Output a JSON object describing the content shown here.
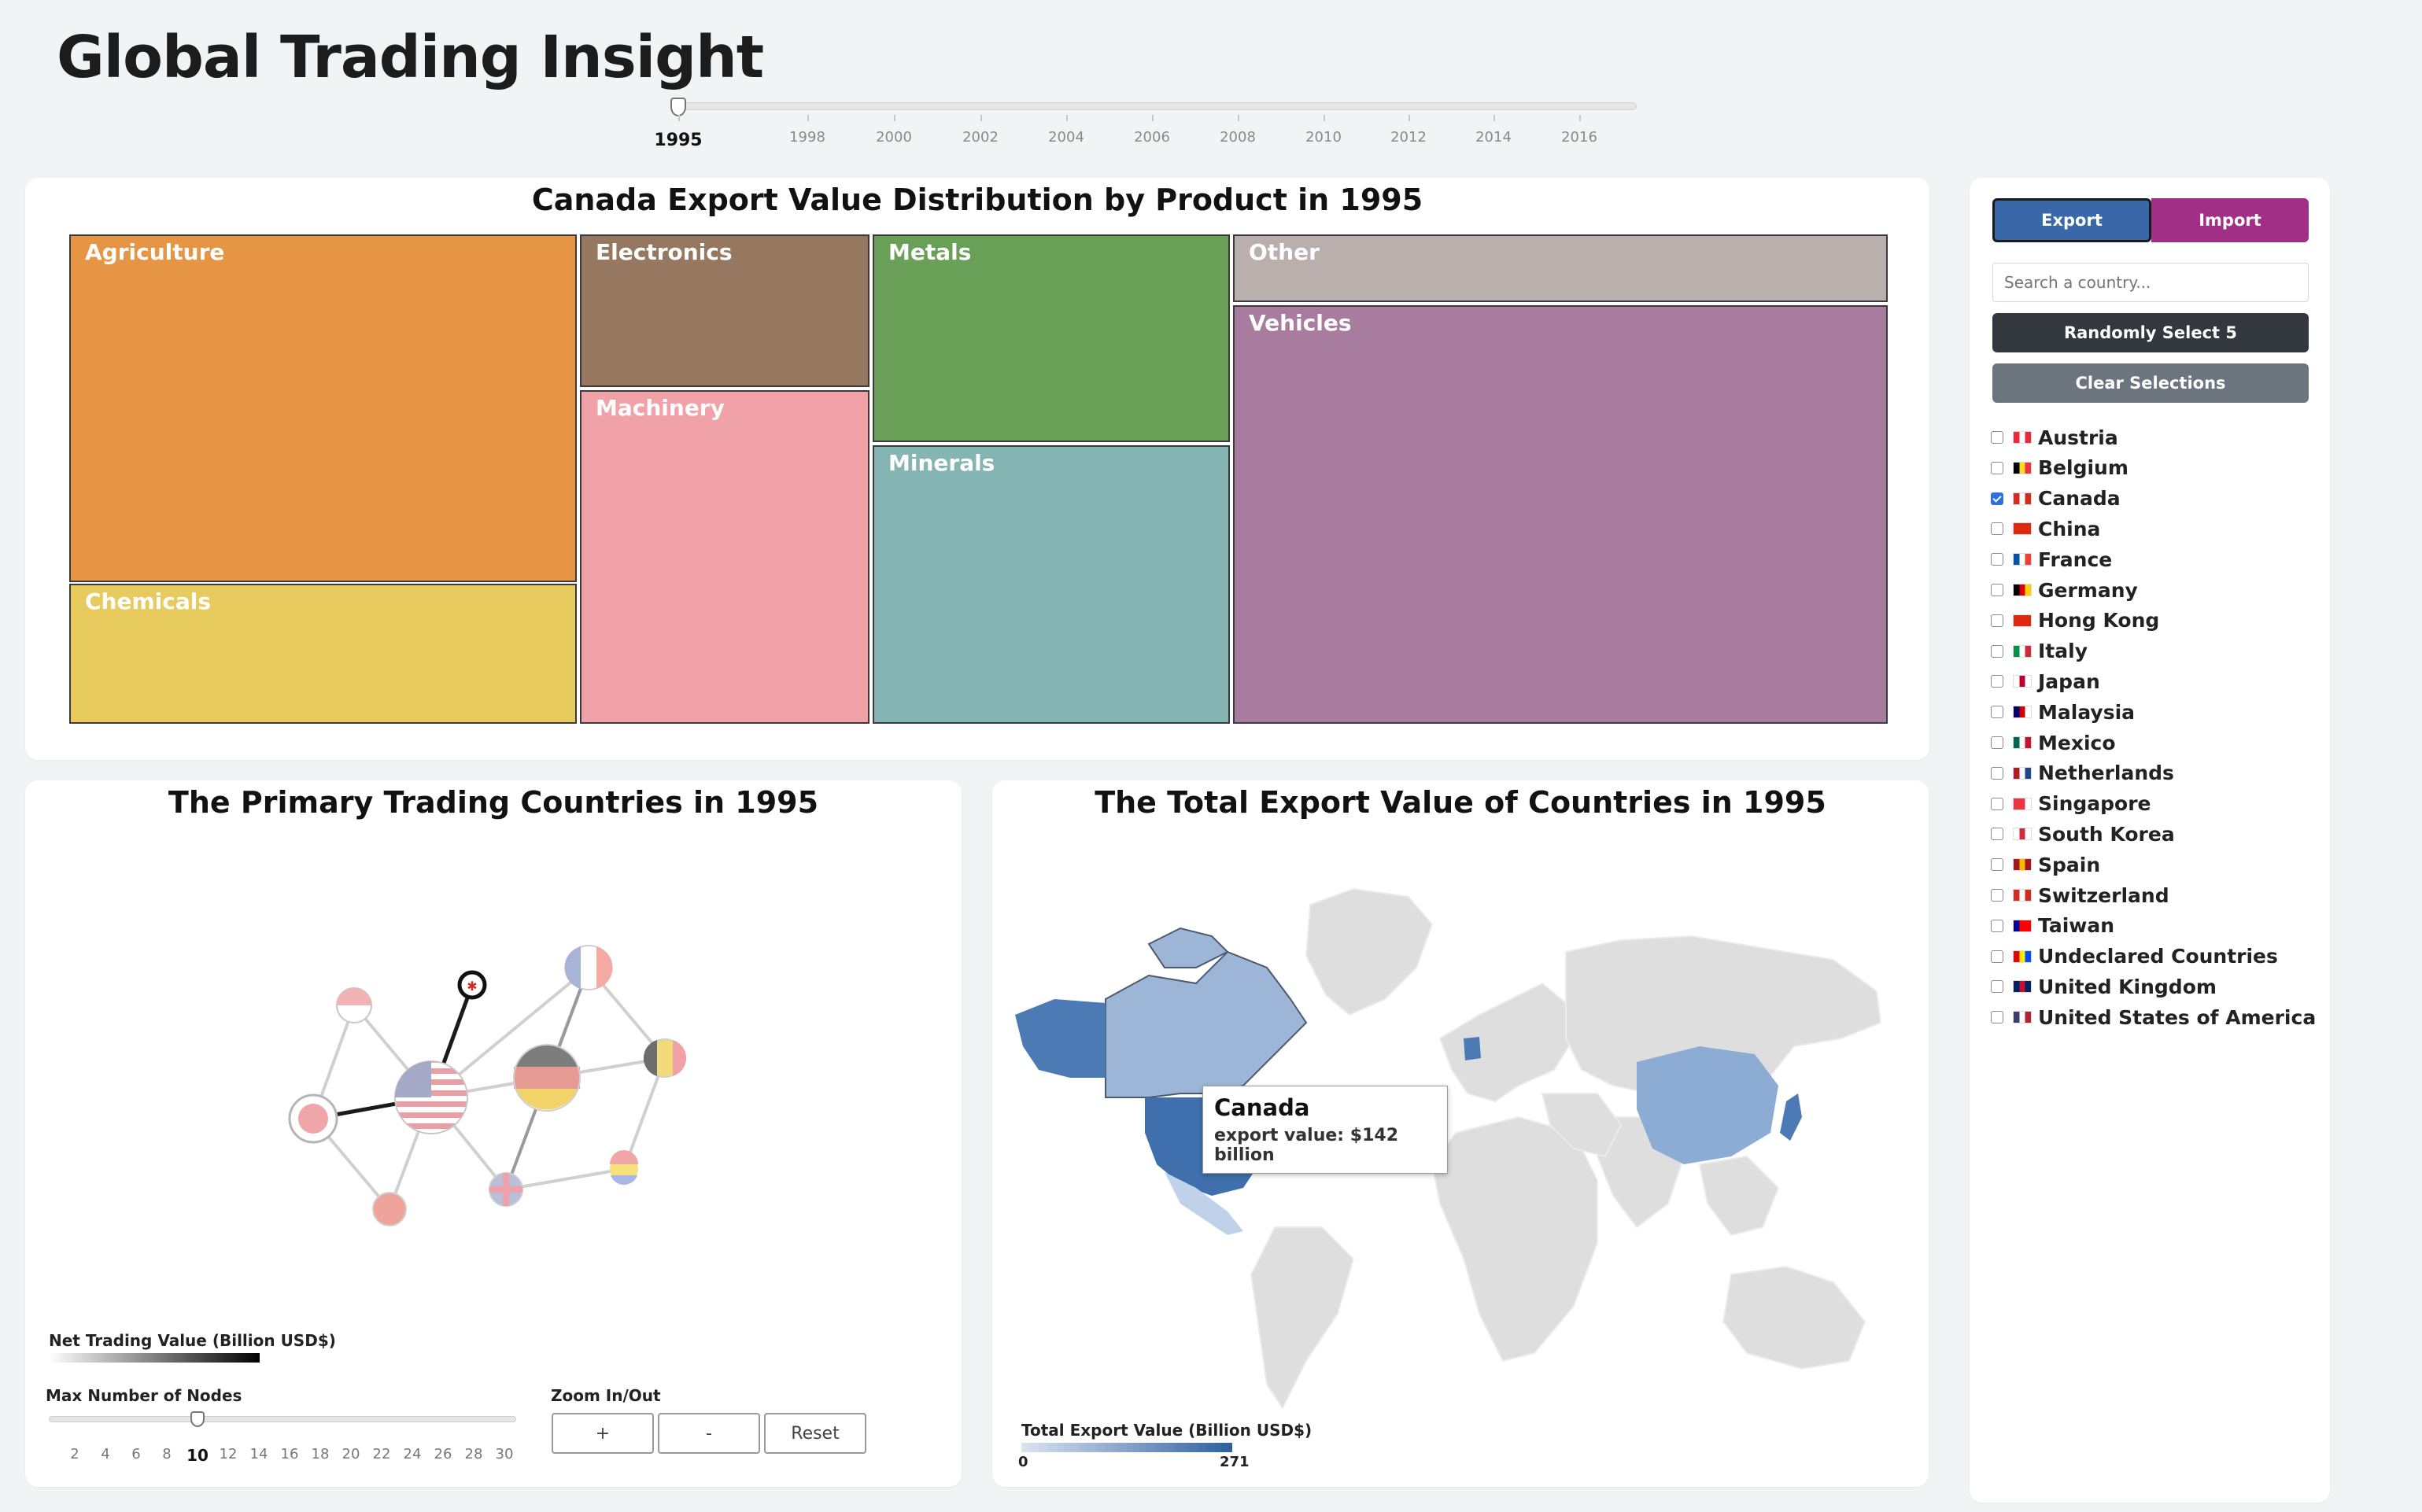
{
  "header": {
    "title": "Global Trading Insight"
  },
  "year_slider": {
    "selected": "1995",
    "ticks": [
      "1995",
      "1998",
      "2000",
      "2002",
      "2004",
      "2006",
      "2008",
      "2010",
      "2012",
      "2014",
      "2016"
    ]
  },
  "treemap": {
    "title": "Canada Export Value Distribution by Product in 1995",
    "cells": [
      {
        "label": "Agriculture",
        "color": "#e69545"
      },
      {
        "label": "Chemicals",
        "color": "#e8cb5e"
      },
      {
        "label": "Electronics",
        "color": "#967861"
      },
      {
        "label": "Machinery",
        "color": "#f1a2a8"
      },
      {
        "label": "Metals",
        "color": "#6a9f58"
      },
      {
        "label": "Minerals",
        "color": "#84b5b2"
      },
      {
        "label": "Other",
        "color": "#b9b0ad"
      },
      {
        "label": "Vehicles",
        "color": "#a77c9f"
      }
    ]
  },
  "network": {
    "title": "The Primary Trading Countries in 1995",
    "legend_label": "Net Trading Value (Billion USD$)",
    "max_nodes_label": "Max Number of Nodes",
    "max_nodes_ticks": [
      "2",
      "4",
      "6",
      "8",
      "10",
      "12",
      "14",
      "16",
      "18",
      "20",
      "22",
      "24",
      "26",
      "28",
      "30"
    ],
    "max_nodes_selected": "10",
    "zoom_label": "Zoom In/Out",
    "zoom_in": "+",
    "zoom_out": "-",
    "reset": "Reset"
  },
  "map": {
    "title": "The Total Export Value of Countries in 1995",
    "legend_label": "Total Export Value (Billion USD$)",
    "legend_min": "0",
    "legend_max": "271",
    "tooltip_country": "Canada",
    "tooltip_value": "export value: $142 billion"
  },
  "sidebar": {
    "export_label": "Export",
    "import_label": "Import",
    "search_placeholder": "Search a country...",
    "random_label": "Randomly Select 5",
    "clear_label": "Clear Selections",
    "countries": [
      {
        "name": "Austria",
        "checked": false,
        "flag": [
          "#ed2939",
          "#fff",
          "#ed2939"
        ]
      },
      {
        "name": "Belgium",
        "checked": false,
        "flag": [
          "#000",
          "#fdda24",
          "#ef3340"
        ]
      },
      {
        "name": "Canada",
        "checked": true,
        "flag": [
          "#d52b1e",
          "#fff",
          "#d52b1e"
        ]
      },
      {
        "name": "China",
        "checked": false,
        "flag": [
          "#de2910",
          "#de2910",
          "#de2910"
        ]
      },
      {
        "name": "France",
        "checked": false,
        "flag": [
          "#0055a4",
          "#fff",
          "#ef4135"
        ]
      },
      {
        "name": "Germany",
        "checked": false,
        "flag": [
          "#000",
          "#dd0000",
          "#ffce00"
        ]
      },
      {
        "name": "Hong Kong",
        "checked": false,
        "flag": [
          "#de2910",
          "#de2910",
          "#de2910"
        ]
      },
      {
        "name": "Italy",
        "checked": false,
        "flag": [
          "#009246",
          "#fff",
          "#ce2b37"
        ]
      },
      {
        "name": "Japan",
        "checked": false,
        "flag": [
          "#fff",
          "#bc002d",
          "#fff"
        ]
      },
      {
        "name": "Malaysia",
        "checked": false,
        "flag": [
          "#010066",
          "#cc0001",
          "#fff"
        ]
      },
      {
        "name": "Mexico",
        "checked": false,
        "flag": [
          "#006847",
          "#fff",
          "#ce1126"
        ]
      },
      {
        "name": "Netherlands",
        "checked": false,
        "flag": [
          "#ae1c28",
          "#fff",
          "#21468b"
        ]
      },
      {
        "name": "Singapore",
        "checked": false,
        "flag": [
          "#ef3340",
          "#ef3340",
          "#fff"
        ]
      },
      {
        "name": "South Korea",
        "checked": false,
        "flag": [
          "#fff",
          "#cd2e3a",
          "#fff"
        ]
      },
      {
        "name": "Spain",
        "checked": false,
        "flag": [
          "#aa151b",
          "#f1bf00",
          "#aa151b"
        ]
      },
      {
        "name": "Switzerland",
        "checked": false,
        "flag": [
          "#d52b1e",
          "#fff",
          "#d52b1e"
        ]
      },
      {
        "name": "Taiwan",
        "checked": false,
        "flag": [
          "#000095",
          "#fe0000",
          "#fe0000"
        ]
      },
      {
        "name": "Undeclared Countries",
        "checked": false,
        "flag": [
          "#e40303",
          "#ffed00",
          "#004dff"
        ]
      },
      {
        "name": "United Kingdom",
        "checked": false,
        "flag": [
          "#012169",
          "#c8102e",
          "#012169"
        ]
      },
      {
        "name": "United States of America",
        "checked": false,
        "flag": [
          "#3c3b6e",
          "#fff",
          "#b22234"
        ]
      }
    ]
  }
}
